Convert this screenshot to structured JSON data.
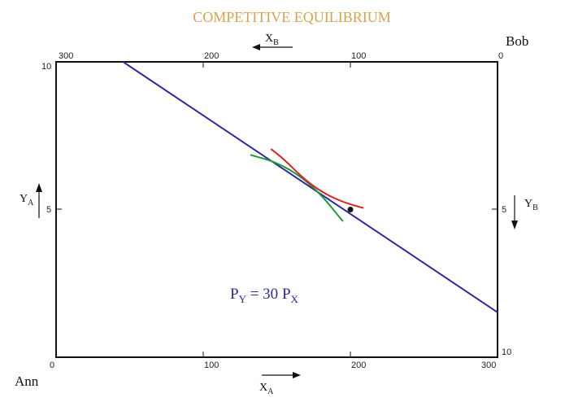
{
  "title": "COMPETITIVE EQUILIBRIUM",
  "corners": {
    "top_right": "Bob",
    "bottom_left": "Ann"
  },
  "axes": {
    "bottom": {
      "var": "X",
      "sub": "A",
      "ticks": [
        "0",
        "100",
        "200",
        "300"
      ]
    },
    "top": {
      "var": "X",
      "sub": "B",
      "ticks": [
        "300",
        "200",
        "100",
        "0"
      ]
    },
    "left": {
      "var": "Y",
      "sub": "A",
      "ticks": [
        "10",
        "5"
      ]
    },
    "right": {
      "var": "Y",
      "sub": "B",
      "ticks": [
        "5",
        "10"
      ]
    }
  },
  "price_label": {
    "lhs": "P",
    "lhs_sub": "Y",
    "eq": " = 30 ",
    "rhs": "P",
    "rhs_sub": "X"
  },
  "colors": {
    "budget_line": "#2b2b9a",
    "ann_indifference": "#e02020",
    "bob_indifference": "#1f9a3a",
    "title": "#d9a24a"
  },
  "box": {
    "x_total": 300,
    "y_total": 10
  },
  "endowment": {
    "x_A": 200,
    "y_A": 5
  },
  "budget_line": {
    "slope": -0.0333,
    "points": [
      [
        45.5,
        10
      ],
      [
        300,
        1.52
      ]
    ]
  },
  "tangency": {
    "x_A": 167,
    "y_A": 6.1
  },
  "curves": {
    "ann_red": [
      [
        146,
        7.05
      ],
      [
        155,
        6.7
      ],
      [
        167,
        6.1
      ],
      [
        180,
        5.6
      ],
      [
        195,
        5.25
      ],
      [
        209,
        5.05
      ]
    ],
    "bob_green": [
      [
        132,
        6.85
      ],
      [
        150,
        6.6
      ],
      [
        167,
        6.1
      ],
      [
        180,
        5.5
      ],
      [
        190,
        4.9
      ],
      [
        195,
        4.6
      ]
    ]
  }
}
